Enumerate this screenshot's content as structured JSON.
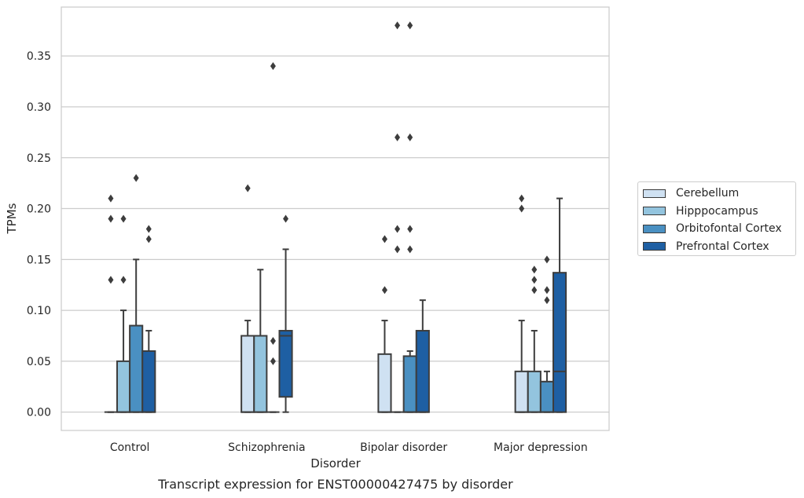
{
  "chart_data": {
    "type": "box",
    "title": "Transcript expression for ENST00000427475 by disorder",
    "xlabel": "Disorder",
    "ylabel": "TPMs",
    "ylim": [
      -0.018,
      0.398
    ],
    "yticks": [
      "0.00",
      "0.05",
      "0.10",
      "0.15",
      "0.20",
      "0.25",
      "0.30",
      "0.35"
    ],
    "categories": [
      "Control",
      "Schizophrenia",
      "Bipolar disorder",
      "Major depression"
    ],
    "grid": "horizontal",
    "legend_position": "right",
    "series": [
      {
        "name": "Cerebellum",
        "color": "#cfe1f2",
        "boxes": [
          {
            "q1": 0,
            "median": 0,
            "q3": 0,
            "whislo": 0,
            "whishi": 0,
            "fliers": [
              0.21,
              0.19,
              0.13
            ]
          },
          {
            "q1": 0,
            "median": 0,
            "q3": 0.075,
            "whislo": 0,
            "whishi": 0.09,
            "fliers": [
              0.22
            ]
          },
          {
            "q1": 0,
            "median": 0,
            "q3": 0.057,
            "whislo": 0,
            "whishi": 0.09,
            "fliers": [
              0.17,
              0.12
            ]
          },
          {
            "q1": 0,
            "median": 0,
            "q3": 0.04,
            "whislo": 0,
            "whishi": 0.09,
            "fliers": [
              0.21,
              0.2
            ]
          }
        ]
      },
      {
        "name": "Hipppocampus",
        "color": "#93c4de",
        "boxes": [
          {
            "q1": 0,
            "median": 0,
            "q3": 0.05,
            "whislo": 0,
            "whishi": 0.1,
            "fliers": [
              0.19,
              0.13
            ]
          },
          {
            "q1": 0,
            "median": 0,
            "q3": 0.075,
            "whislo": 0,
            "whishi": 0.14,
            "fliers": []
          },
          {
            "q1": 0,
            "median": 0,
            "q3": 0,
            "whislo": 0,
            "whishi": 0,
            "fliers": [
              0.38,
              0.27,
              0.18,
              0.16
            ]
          },
          {
            "q1": 0,
            "median": 0,
            "q3": 0.04,
            "whislo": 0,
            "whishi": 0.08,
            "fliers": [
              0.14,
              0.13,
              0.12
            ]
          }
        ]
      },
      {
        "name": "Orbitofontal Cortex",
        "color": "#4a90c2",
        "boxes": [
          {
            "q1": 0,
            "median": 0,
            "q3": 0.085,
            "whislo": 0,
            "whishi": 0.15,
            "fliers": [
              0.23
            ]
          },
          {
            "q1": 0,
            "median": 0,
            "q3": 0,
            "whislo": 0,
            "whishi": 0,
            "fliers": [
              0.34,
              0.07,
              0.05
            ]
          },
          {
            "q1": 0,
            "median": 0,
            "q3": 0.055,
            "whislo": 0,
            "whishi": 0.06,
            "fliers": [
              0.38,
              0.27,
              0.18,
              0.16
            ]
          },
          {
            "q1": 0,
            "median": 0,
            "q3": 0.03,
            "whislo": 0,
            "whishi": 0.04,
            "fliers": [
              0.15,
              0.12,
              0.11
            ]
          }
        ]
      },
      {
        "name": "Prefrontal Cortex",
        "color": "#1e5fa3",
        "boxes": [
          {
            "q1": 0,
            "median": 0,
            "q3": 0.06,
            "whislo": 0,
            "whishi": 0.08,
            "fliers": [
              0.18,
              0.17
            ]
          },
          {
            "q1": 0.015,
            "median": 0.075,
            "q3": 0.08,
            "whislo": 0,
            "whishi": 0.16,
            "fliers": [
              0.19
            ]
          },
          {
            "q1": 0,
            "median": 0,
            "q3": 0.08,
            "whislo": 0,
            "whishi": 0.11,
            "fliers": []
          },
          {
            "q1": 0,
            "median": 0.04,
            "q3": 0.137,
            "whislo": 0,
            "whishi": 0.21,
            "fliers": []
          }
        ]
      }
    ]
  }
}
